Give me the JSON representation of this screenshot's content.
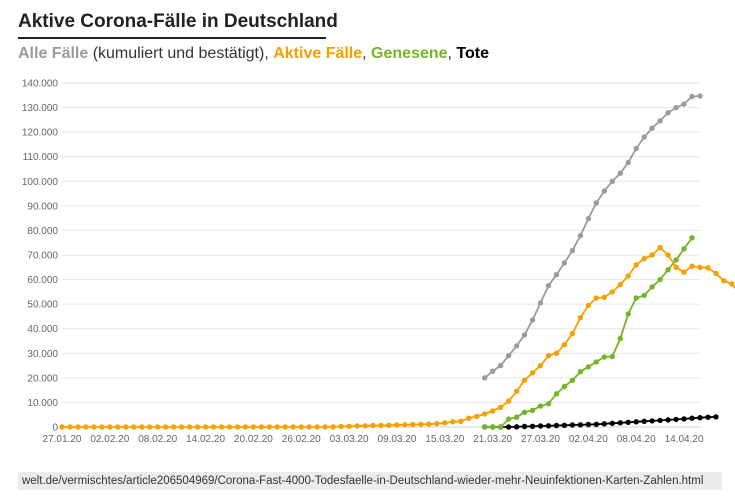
{
  "header": {
    "title": "Aktive Corona-Fälle in Deutschland",
    "subtitle": {
      "all": "Alle Fälle",
      "all_suffix": " (kumuliert und bestätigt), ",
      "active": "Aktive Fälle",
      "sep1": ", ",
      "recovered": "Genesene",
      "sep2": ", ",
      "deaths": "Tote"
    }
  },
  "colors": {
    "all": "#9b9b9b",
    "active": "#f5a000",
    "recovered": "#74b52a",
    "deaths": "#000000",
    "grid": "#e6e6e6",
    "axis_text": "#666666"
  },
  "source": {
    "text": "welt.de/vermischtes/article206504969/Corona-Fast-4000-Todesfaelle-in-Deutschland-wieder-mehr-Neuinfektionen-Karten-Zahlen.html"
  },
  "chart_data": {
    "type": "line",
    "title": "Aktive Corona-Fälle in Deutschland",
    "xlabel": "",
    "ylabel": "",
    "ylim": [
      0,
      140000
    ],
    "yticks": [
      0,
      10000,
      20000,
      30000,
      40000,
      50000,
      60000,
      70000,
      80000,
      90000,
      100000,
      110000,
      120000,
      130000,
      140000
    ],
    "ytick_labels": [
      "0",
      "10.000",
      "20.000",
      "30.000",
      "40.000",
      "50.000",
      "60.000",
      "70.000",
      "80.000",
      "90.000",
      "100.000",
      "110.000",
      "120.000",
      "130.000",
      "140.000"
    ],
    "x_start": "2020-01-27",
    "x_end": "2020-04-16",
    "xtick_labels": [
      "27.01.20",
      "02.02.20",
      "08.02.20",
      "14.02.20",
      "20.02.20",
      "26.02.20",
      "03.03.20",
      "09.03.20",
      "15.03.20",
      "21.03.20",
      "27.03.20",
      "02.04.20",
      "08.04.20",
      "14.04.20"
    ],
    "grid": true,
    "legend": "subtitle",
    "series": [
      {
        "name": "Alle Fälle",
        "color": "#9b9b9b",
        "start_date": "2020-03-20",
        "values": [
          20000,
          22700,
          25000,
          29000,
          33000,
          37500,
          43500,
          50500,
          57500,
          62000,
          66800,
          71800,
          77900,
          84800,
          91200,
          96000,
          100000,
          103300,
          107600,
          113300,
          118000,
          121600,
          124600,
          127900,
          130000,
          131400,
          134500,
          134700
        ]
      },
      {
        "name": "Aktive Fälle",
        "color": "#f5a000",
        "start_date": "2020-01-27",
        "values": [
          0,
          0,
          0,
          0,
          0,
          0,
          0,
          0,
          0,
          0,
          0,
          0,
          0,
          0,
          0,
          0,
          0,
          0,
          0,
          0,
          0,
          0,
          0,
          0,
          0,
          0,
          0,
          0,
          0,
          0,
          0,
          0,
          0,
          0,
          100,
          200,
          300,
          400,
          500,
          600,
          650,
          700,
          800,
          900,
          1000,
          1100,
          1200,
          1400,
          1700,
          2100,
          2300,
          3600,
          4300,
          5300,
          6500,
          8000,
          10500,
          14500,
          19000,
          22000,
          25000,
          29000,
          30000,
          33500,
          38000,
          44500,
          49500,
          52500,
          52800,
          55000,
          58000,
          61500,
          66000,
          68500,
          70000,
          73000,
          70000,
          65000,
          63000,
          65500,
          65000,
          64800,
          62500,
          59500,
          58200,
          54500
        ]
      },
      {
        "name": "Genesene",
        "color": "#74b52a",
        "start_date": "2020-03-20",
        "values": [
          0,
          0,
          0,
          3200,
          4000,
          6000,
          6800,
          8500,
          9500,
          13500,
          16500,
          19000,
          22500,
          24500,
          26500,
          28500,
          28700,
          36000,
          46000,
          52500,
          53500,
          57000,
          60000,
          64000,
          68000,
          72500,
          77000
        ]
      },
      {
        "name": "Tote",
        "color": "#000000",
        "start_date": "2020-03-20",
        "values": [
          0,
          0,
          0,
          0,
          100,
          200,
          300,
          400,
          500,
          600,
          700,
          800,
          900,
          1000,
          1100,
          1300,
          1500,
          1700,
          1900,
          2100,
          2300,
          2500,
          2700,
          2900,
          3100,
          3300,
          3600,
          3800,
          4000,
          4100
        ]
      }
    ]
  }
}
